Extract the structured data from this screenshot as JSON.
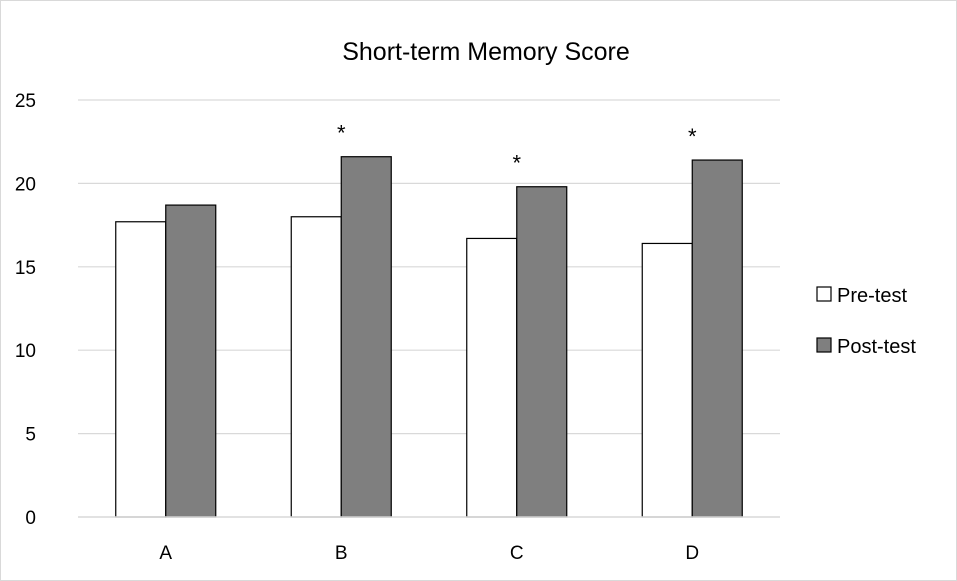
{
  "chart_data": {
    "type": "bar",
    "title": "Short-term Memory Score",
    "xlabel": "",
    "ylabel": "",
    "categories": [
      "A",
      "B",
      "C",
      "D"
    ],
    "series": [
      {
        "name": "Pre-test",
        "values": [
          17.7,
          18.0,
          16.7,
          16.4
        ],
        "color": "#ffffff"
      },
      {
        "name": "Post-test",
        "values": [
          18.7,
          21.6,
          19.8,
          21.4
        ],
        "color": "#7f7f7f"
      }
    ],
    "ylim": [
      0,
      25
    ],
    "yticks": [
      "0",
      "5",
      "10",
      "15",
      "20",
      "25"
    ],
    "grid": true,
    "legend": "right",
    "annotations": [
      {
        "category": "B",
        "text": "*"
      },
      {
        "category": "C",
        "text": "*"
      },
      {
        "category": "D",
        "text": "*"
      }
    ]
  }
}
